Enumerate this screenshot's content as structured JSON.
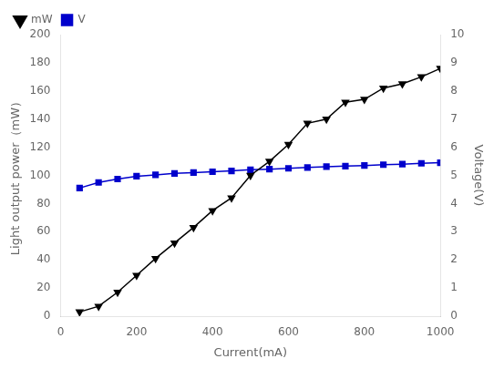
{
  "chart_data": {
    "type": "line",
    "xlabel": "Current(mA)",
    "ylabel": "Light output power（mW）",
    "y2label": "Voltage(V)",
    "x": [
      50,
      100,
      150,
      200,
      250,
      300,
      350,
      400,
      450,
      500,
      550,
      600,
      650,
      700,
      750,
      800,
      850,
      900,
      950,
      1000
    ],
    "series": [
      {
        "name": "mW",
        "color": "#000000",
        "marker": "triangle_down",
        "line_style": "solid",
        "values": [
          3,
          7,
          17,
          29,
          41,
          52,
          63,
          75,
          84,
          100,
          110,
          122,
          137,
          140,
          152,
          154,
          162,
          165,
          170,
          176
        ]
      },
      {
        "name": "V",
        "color": "#0000cc",
        "marker": "square",
        "line_style": "solid",
        "axis": "y2",
        "values": [
          4.55,
          4.75,
          4.87,
          4.97,
          5.02,
          5.07,
          5.1,
          5.13,
          5.16,
          5.2,
          5.22,
          5.25,
          5.28,
          5.31,
          5.33,
          5.35,
          5.38,
          5.4,
          5.43,
          5.45
        ]
      }
    ],
    "xlim": [
      0,
      1000
    ],
    "xticks": [
      0,
      200,
      400,
      600,
      800,
      1000
    ],
    "ylim": [
      0,
      200
    ],
    "yticks": [
      0,
      20,
      40,
      60,
      80,
      100,
      120,
      140,
      160,
      180,
      200
    ],
    "y2lim": [
      0,
      10
    ],
    "y2ticks": [
      0,
      1,
      2,
      3,
      4,
      5,
      6,
      7,
      8,
      9,
      10
    ],
    "legend": "upper left",
    "grid": false
  }
}
